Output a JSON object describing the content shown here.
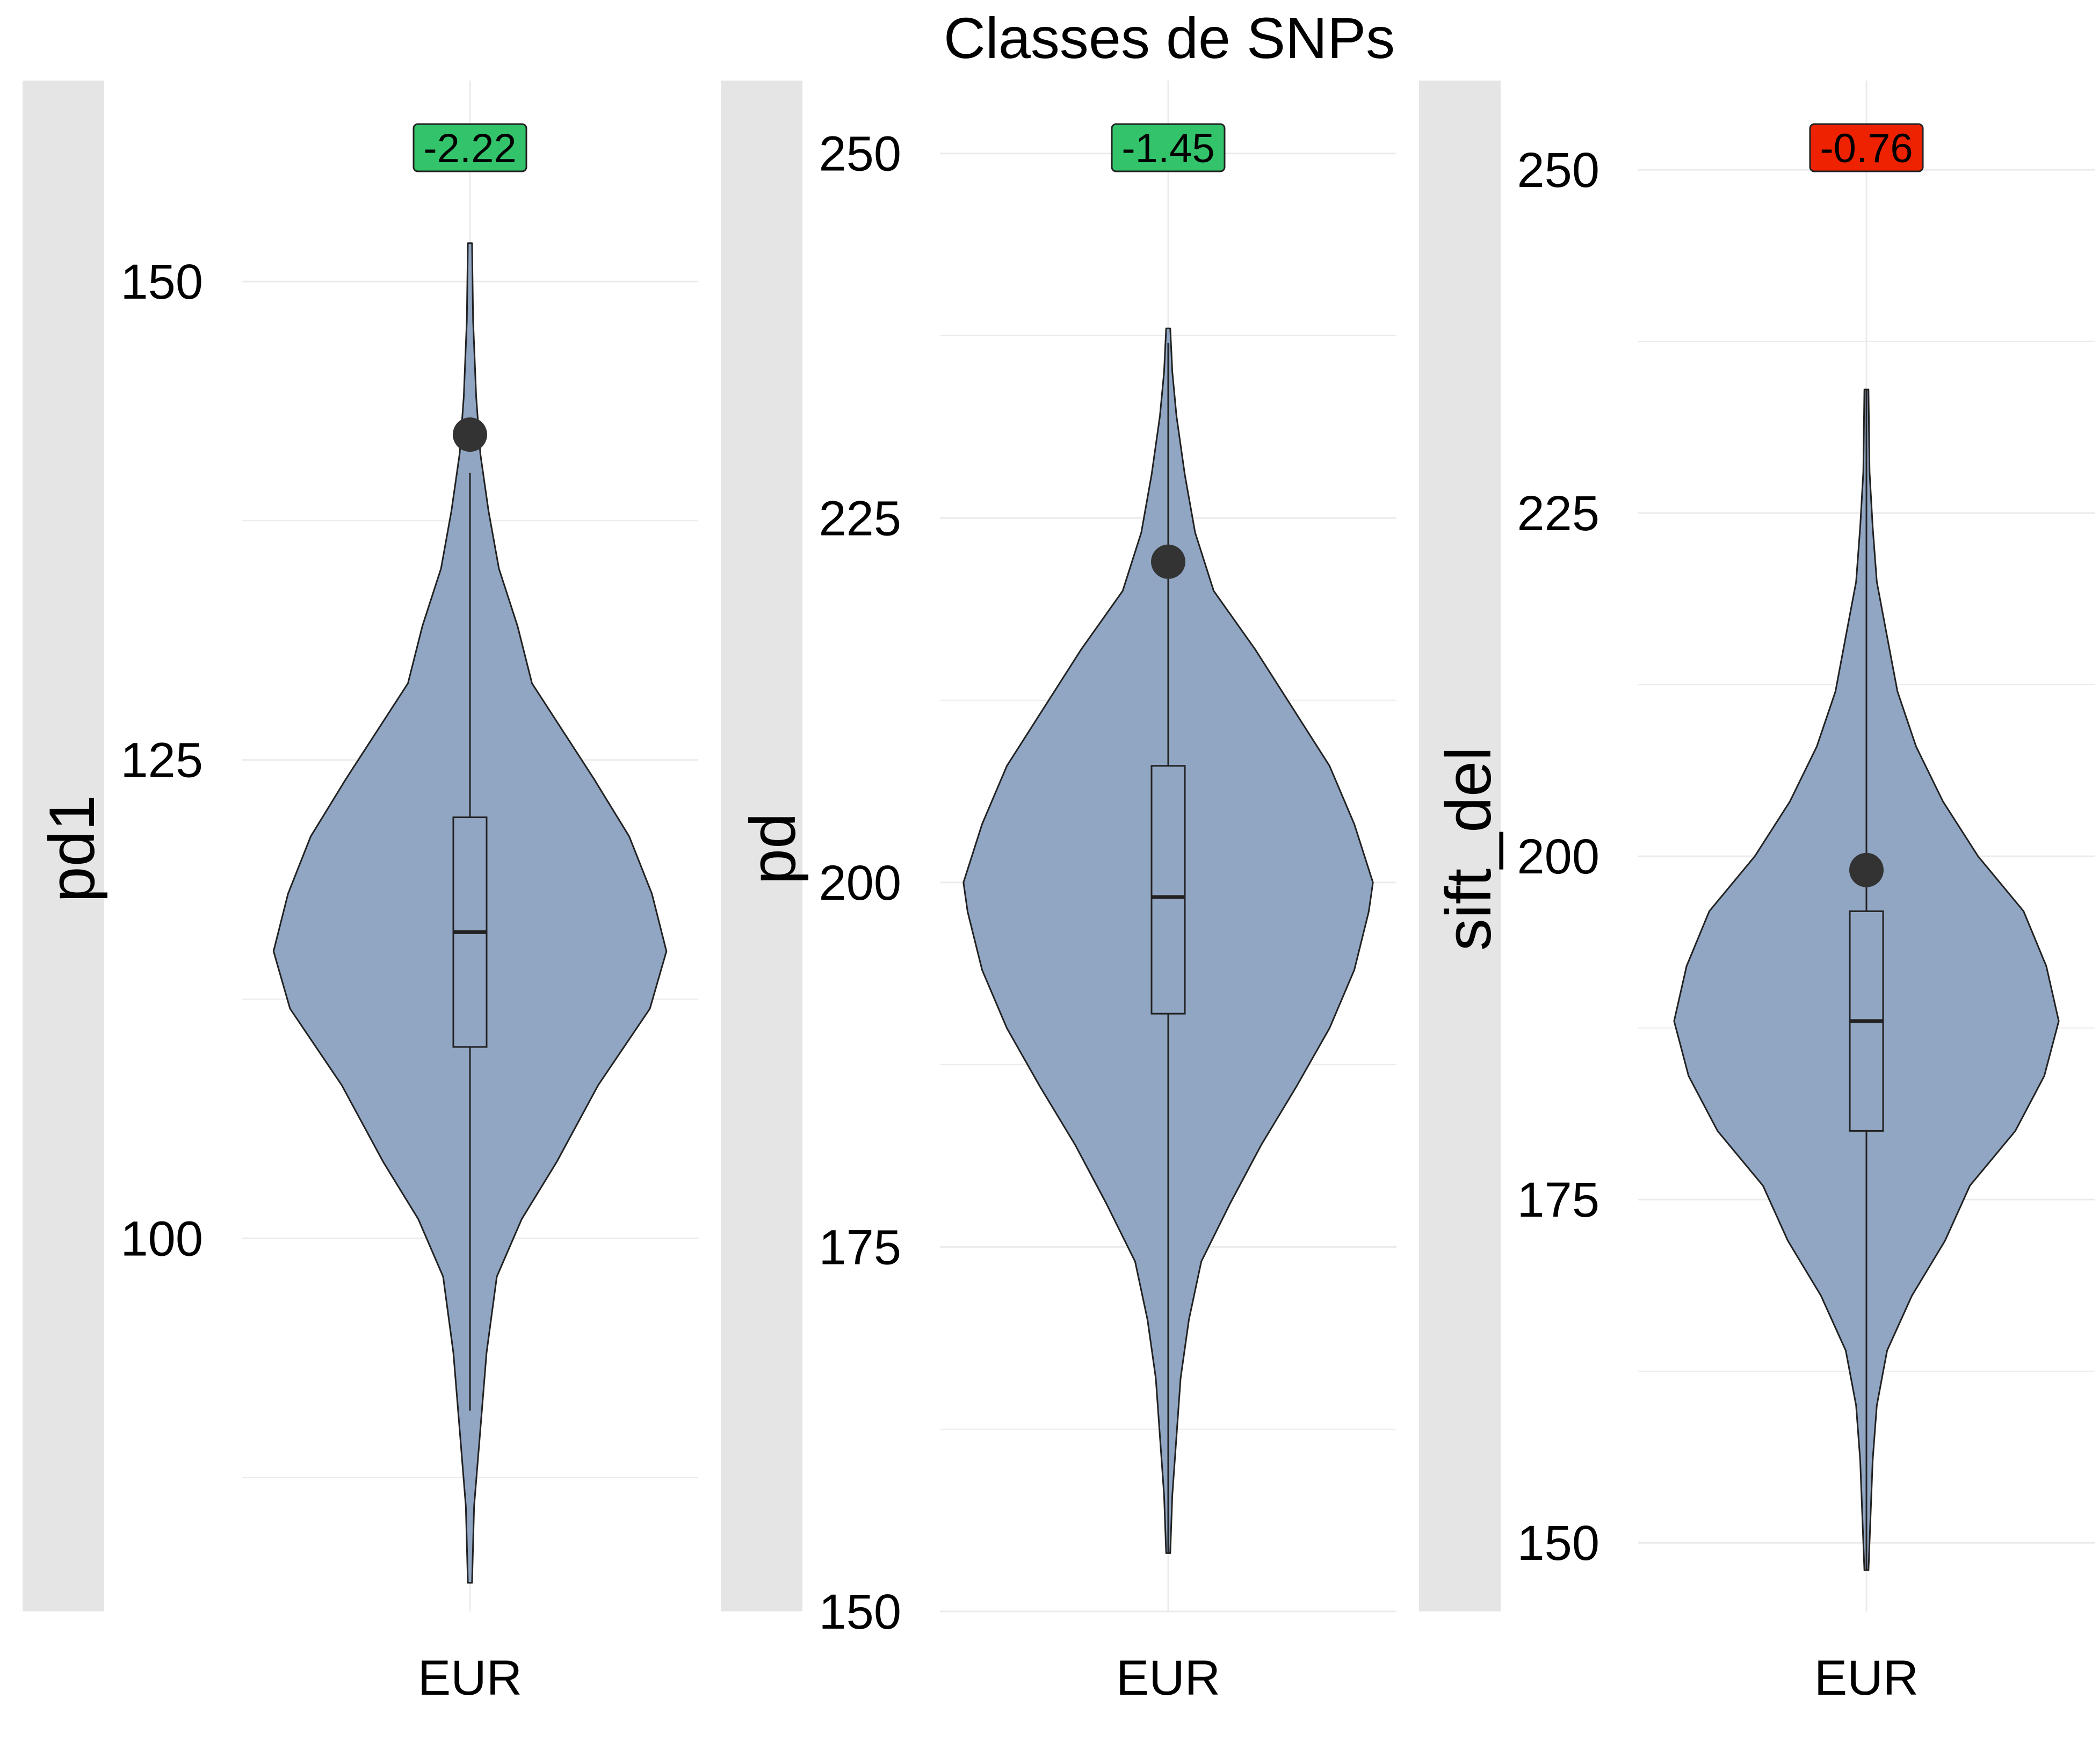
{
  "chart_data": {
    "type": "violin",
    "title": "Classes de SNPs",
    "colors": {
      "violin_fill": "#91A6C3",
      "strip_fill": "#E5E5E5",
      "grid": "#EBEBEB",
      "point": "#333333",
      "badge_green": "#33C46B",
      "badge_red": "#EE2200"
    },
    "panels": [
      {
        "ylabel": "pd1",
        "category": "EUR",
        "ylim": [
          80.5,
          160.5
        ],
        "y_ticks": [
          100,
          125,
          150
        ],
        "y_minor": [
          87.5,
          112.5,
          137.5,
          162.5
        ],
        "box": {
          "q1": 110,
          "median": 116,
          "q3": 122,
          "whisker_low": 91,
          "whisker_high": 140
        },
        "violin": {
          "min": 82,
          "max": 152,
          "profile": [
            [
              82,
              0.01
            ],
            [
              86,
              0.02
            ],
            [
              90,
              0.05
            ],
            [
              94,
              0.08
            ],
            [
              98,
              0.13
            ],
            [
              101,
              0.25
            ],
            [
              104,
              0.42
            ],
            [
              108,
              0.62
            ],
            [
              112,
              0.87
            ],
            [
              115,
              0.95
            ],
            [
              118,
              0.88
            ],
            [
              121,
              0.77
            ],
            [
              124,
              0.6
            ],
            [
              127,
              0.42
            ],
            [
              129,
              0.3
            ],
            [
              132,
              0.23
            ],
            [
              135,
              0.14
            ],
            [
              138,
              0.09
            ],
            [
              141,
              0.05
            ],
            [
              144,
              0.03
            ],
            [
              148,
              0.015
            ],
            [
              152,
              0.01
            ]
          ]
        },
        "point": 142,
        "badge": {
          "label": "-2.22",
          "color": "#33C46B"
        }
      },
      {
        "ylabel": "pd",
        "category": "EUR",
        "ylim": [
          150,
          255
        ],
        "y_ticks": [
          150,
          175,
          200,
          225,
          250
        ],
        "y_minor": [
          162.5,
          187.5,
          212.5,
          237.5
        ],
        "box": {
          "q1": 191,
          "median": 199,
          "q3": 208,
          "whisker_low": 154,
          "whisker_high": 237
        },
        "violin": {
          "min": 154,
          "max": 238,
          "profile": [
            [
              154,
              0.01
            ],
            [
              158,
              0.02
            ],
            [
              162,
              0.04
            ],
            [
              166,
              0.06
            ],
            [
              170,
              0.1
            ],
            [
              174,
              0.16
            ],
            [
              178,
              0.3
            ],
            [
              182,
              0.45
            ],
            [
              186,
              0.62
            ],
            [
              190,
              0.78
            ],
            [
              194,
              0.9
            ],
            [
              198,
              0.97
            ],
            [
              200,
              0.99
            ],
            [
              204,
              0.9
            ],
            [
              208,
              0.78
            ],
            [
              212,
              0.6
            ],
            [
              216,
              0.42
            ],
            [
              220,
              0.22
            ],
            [
              224,
              0.13
            ],
            [
              228,
              0.08
            ],
            [
              232,
              0.04
            ],
            [
              235,
              0.02
            ],
            [
              238,
              0.01
            ]
          ]
        },
        "point": 222,
        "badge": {
          "label": "-1.45",
          "color": "#33C46B"
        }
      },
      {
        "ylabel": "sift_del",
        "category": "EUR",
        "ylim": [
          145,
          256.5
        ],
        "y_ticks": [
          150,
          175,
          200,
          225,
          250
        ],
        "y_minor": [
          162.5,
          187.5,
          212.5,
          237.5
        ],
        "box": {
          "q1": 180,
          "median": 188,
          "q3": 196,
          "whisker_low": 148,
          "whisker_high": 234
        },
        "violin": {
          "min": 148,
          "max": 234,
          "profile": [
            [
              148,
              0.01
            ],
            [
              152,
              0.02
            ],
            [
              156,
              0.03
            ],
            [
              160,
              0.05
            ],
            [
              164,
              0.1
            ],
            [
              168,
              0.22
            ],
            [
              172,
              0.38
            ],
            [
              176,
              0.5
            ],
            [
              180,
              0.72
            ],
            [
              184,
              0.86
            ],
            [
              188,
              0.93
            ],
            [
              192,
              0.87
            ],
            [
              196,
              0.76
            ],
            [
              200,
              0.54
            ],
            [
              204,
              0.37
            ],
            [
              208,
              0.24
            ],
            [
              212,
              0.15
            ],
            [
              216,
              0.1
            ],
            [
              220,
              0.05
            ],
            [
              224,
              0.03
            ],
            [
              228,
              0.015
            ],
            [
              234,
              0.01
            ]
          ]
        },
        "point": 199,
        "badge": {
          "label": "-0.76",
          "color": "#EE2200"
        }
      }
    ]
  }
}
